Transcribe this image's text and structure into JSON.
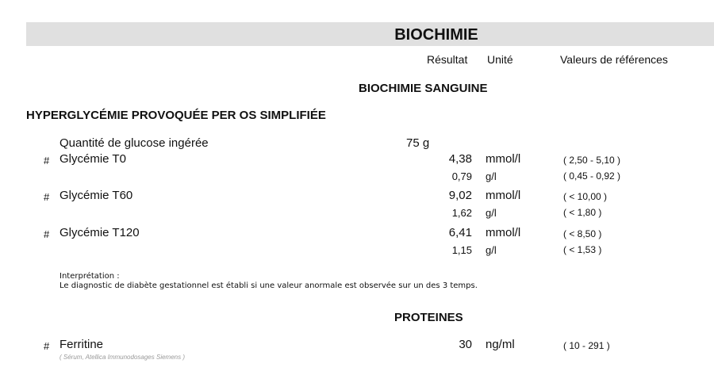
{
  "title": "BIOCHIMIE",
  "headers": {
    "result": "Résultat",
    "unit": "Unité",
    "refs": "Valeurs de références"
  },
  "section": "BIOCHIMIE SANGUINE",
  "subsection": "HYPERGLYCÉMIE PROVOQUÉE PER OS SIMPLIFIÉE",
  "glucose": {
    "label": "Quantité de glucose ingérée",
    "value": "75 g"
  },
  "tests": [
    {
      "mark": "#",
      "label": "Glycémie T0",
      "value": "4,38",
      "unit": "mmol/l",
      "ref": "( 2,50 - 5,10 )",
      "value2": "0,79",
      "unit2": "g/l",
      "ref2": "( 0,45 - 0,92 )"
    },
    {
      "mark": "#",
      "label": "Glycémie T60",
      "value": "9,02",
      "unit": "mmol/l",
      "ref": "( < 10,00 )",
      "value2": "1,62",
      "unit2": "g/l",
      "ref2": "( < 1,80 )"
    },
    {
      "mark": "#",
      "label": "Glycémie T120",
      "value": "6,41",
      "unit": "mmol/l",
      "ref": "( < 8,50 )",
      "value2": "1,15",
      "unit2": "g/l",
      "ref2": "( < 1,53 )"
    }
  ],
  "interpretation": {
    "title": "Interprétation :",
    "text": "Le diagnostic de diabète gestationnel est établi si une valeur anormale est observée sur un des 3 temps."
  },
  "proteins": {
    "title": "PROTEINES",
    "mark": "#",
    "label": "Ferritine",
    "value": "30",
    "unit": "ng/ml",
    "ref": "( 10 - 291 )",
    "note": "( Sérum, Atellica Immunodosages Siemens )"
  }
}
